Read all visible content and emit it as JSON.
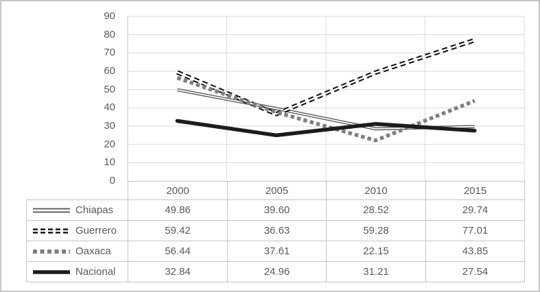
{
  "chart_data": {
    "type": "line",
    "title": "",
    "xlabel": "",
    "ylabel": "",
    "x_categories": [
      "2000",
      "2005",
      "2010",
      "2015"
    ],
    "y_ticks": [
      0,
      10,
      20,
      30,
      40,
      50,
      60,
      70,
      80,
      90
    ],
    "ylim": [
      0,
      90
    ],
    "grid": true,
    "legend_position": "table-left",
    "series": [
      {
        "name": "Chiapas",
        "values": [
          49.86,
          39.6,
          28.52,
          29.74
        ],
        "labels": [
          "49.86",
          "39.60",
          "28.52",
          "29.74"
        ],
        "line_style": "double-solid",
        "color": "#595959"
      },
      {
        "name": "Guerrero",
        "values": [
          59.42,
          36.63,
          59.28,
          77.01
        ],
        "labels": [
          "59.42",
          "36.63",
          "59.28",
          "77.01"
        ],
        "line_style": "double-dash",
        "color": "#141414"
      },
      {
        "name": "Oaxaca",
        "values": [
          56.44,
          37.61,
          22.15,
          43.85
        ],
        "labels": [
          "56.44",
          "37.61",
          "22.15",
          "43.85"
        ],
        "line_style": "square-dot",
        "color": "#7f7f7f"
      },
      {
        "name": "Nacional",
        "values": [
          32.84,
          24.96,
          31.21,
          27.54
        ],
        "labels": [
          "32.84",
          "24.96",
          "31.21",
          "27.54"
        ],
        "line_style": "solid-thick",
        "color": "#1c1c1c"
      }
    ]
  },
  "colors": {
    "background": "#ffffff",
    "gridline": "#d9d9d9",
    "axis_line": "#bfbfbf",
    "table_border": "#c3c3c3",
    "text": "#595959",
    "outer_border": "#c6c6c6"
  }
}
